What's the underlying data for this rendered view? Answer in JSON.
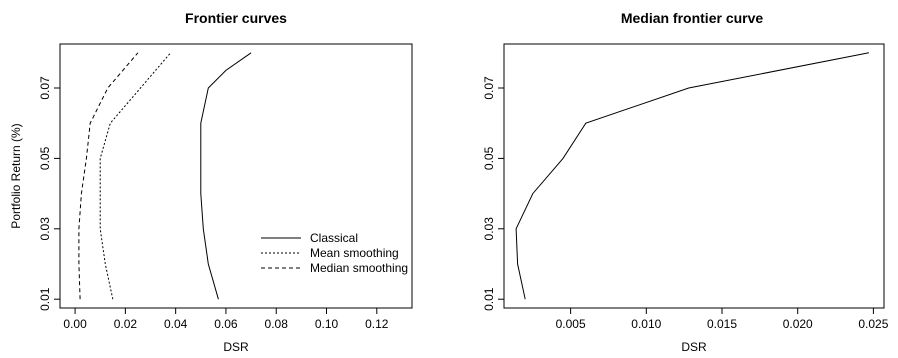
{
  "chart_data": [
    {
      "type": "line",
      "title": "Frontier curves",
      "xlabel": "DSR",
      "ylabel": "Portfolio Return (%)",
      "xlim": [
        -0.006,
        0.134
      ],
      "ylim": [
        0.0075,
        0.0825
      ],
      "xticks": [
        "0.00",
        "0.02",
        "0.04",
        "0.06",
        "0.08",
        "0.10",
        "0.12"
      ],
      "yticks": [
        "0.01",
        "0.03",
        "0.05",
        "0.07"
      ],
      "grid": false,
      "legend_position": "bottom-right",
      "series": [
        {
          "name": "Classical",
          "dash": "solid",
          "x": [
            0.057,
            0.053,
            0.051,
            0.05,
            0.05,
            0.05,
            0.053,
            0.06,
            0.07
          ],
          "y": [
            0.01,
            0.02,
            0.03,
            0.04,
            0.05,
            0.06,
            0.07,
            0.075,
            0.08
          ]
        },
        {
          "name": "Mean smoothing",
          "dash": "dotted",
          "x": [
            0.015,
            0.012,
            0.01,
            0.01,
            0.01,
            0.014,
            0.026,
            0.038
          ],
          "y": [
            0.01,
            0.02,
            0.03,
            0.04,
            0.05,
            0.06,
            0.07,
            0.08
          ]
        },
        {
          "name": "Median smoothing",
          "dash": "dashed",
          "x": [
            0.002,
            0.0015,
            0.0015,
            0.0025,
            0.0045,
            0.006,
            0.013,
            0.025
          ],
          "y": [
            0.01,
            0.02,
            0.03,
            0.04,
            0.05,
            0.06,
            0.07,
            0.08
          ]
        }
      ]
    },
    {
      "type": "line",
      "title": "Median frontier curve",
      "xlabel": "DSR",
      "ylabel": "",
      "xlim": [
        0.0006,
        0.0257
      ],
      "ylim": [
        0.0075,
        0.0825
      ],
      "xticks": [
        "0.005",
        "0.010",
        "0.015",
        "0.020",
        "0.025"
      ],
      "yticks": [
        "0.01",
        "0.03",
        "0.05",
        "0.07"
      ],
      "grid": false,
      "series": [
        {
          "name": "",
          "dash": "solid",
          "x": [
            0.002,
            0.0015,
            0.0014,
            0.0025,
            0.0045,
            0.006,
            0.0128,
            0.0247
          ],
          "y": [
            0.01,
            0.02,
            0.03,
            0.04,
            0.05,
            0.06,
            0.07,
            0.08
          ]
        }
      ]
    }
  ]
}
